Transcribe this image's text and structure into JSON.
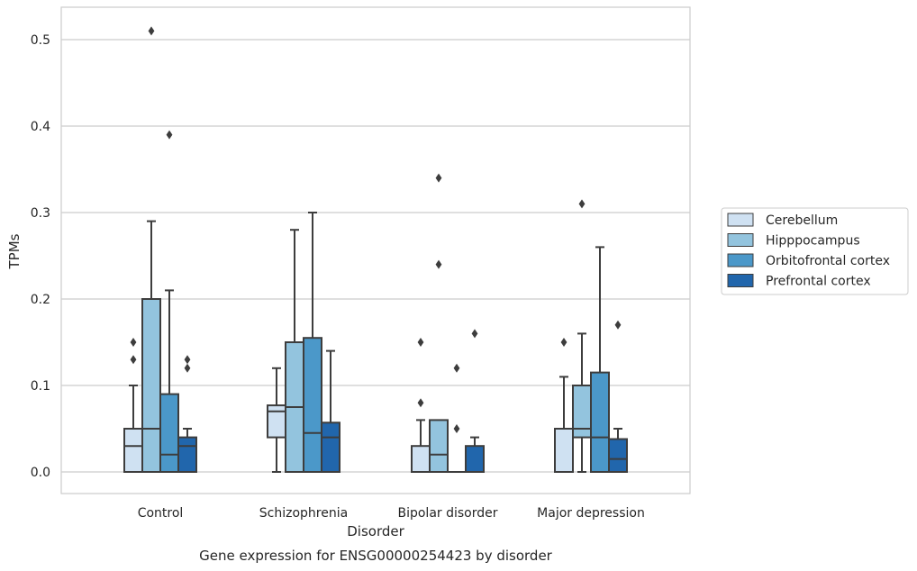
{
  "chart_data": {
    "type": "box",
    "xlabel": "Disorder",
    "ylabel": "TPMs",
    "caption": "Gene expression for ENSG00000254423 by disorder",
    "ylim": [
      -0.025,
      0.536
    ],
    "yticks": [
      0.0,
      0.1,
      0.2,
      0.3,
      0.4,
      0.5
    ],
    "ytick_labels": [
      "0.0",
      "0.1",
      "0.2",
      "0.3",
      "0.4",
      "0.5"
    ],
    "grid": "horizontal",
    "legend_position": "right",
    "categories": [
      "Control",
      "Schizophrenia",
      "Bipolar disorder",
      "Major depression"
    ],
    "series": [
      {
        "name": "Cerebellum",
        "color": "#cfe1f2",
        "boxes": [
          {
            "min": 0.0,
            "q1": 0.0,
            "median": 0.03,
            "q3": 0.05,
            "max": 0.1,
            "outliers": [
              0.13,
              0.15
            ]
          },
          {
            "min": 0.0,
            "q1": 0.04,
            "median": 0.07,
            "q3": 0.077,
            "max": 0.12,
            "outliers": []
          },
          {
            "min": 0.0,
            "q1": 0.0,
            "median": 0.0,
            "q3": 0.03,
            "max": 0.06,
            "outliers": [
              0.08,
              0.15
            ]
          },
          {
            "min": 0.0,
            "q1": 0.0,
            "median": 0.0,
            "q3": 0.05,
            "max": 0.11,
            "outliers": [
              0.15
            ]
          }
        ]
      },
      {
        "name": "Hipppocampus",
        "color": "#93c4de",
        "boxes": [
          {
            "min": 0.0,
            "q1": 0.0,
            "median": 0.05,
            "q3": 0.2,
            "max": 0.29,
            "outliers": [
              0.51
            ]
          },
          {
            "min": 0.0,
            "q1": 0.0,
            "median": 0.075,
            "q3": 0.15,
            "max": 0.28,
            "outliers": []
          },
          {
            "min": 0.0,
            "q1": 0.0,
            "median": 0.02,
            "q3": 0.06,
            "max": 0.06,
            "outliers": [
              0.24,
              0.34
            ]
          },
          {
            "min": 0.0,
            "q1": 0.04,
            "median": 0.05,
            "q3": 0.1,
            "max": 0.16,
            "outliers": [
              0.31
            ]
          }
        ]
      },
      {
        "name": "Orbitofrontal cortex",
        "color": "#4b98c9",
        "boxes": [
          {
            "min": 0.0,
            "q1": 0.0,
            "median": 0.02,
            "q3": 0.09,
            "max": 0.21,
            "outliers": [
              0.39
            ]
          },
          {
            "min": 0.0,
            "q1": 0.0,
            "median": 0.045,
            "q3": 0.155,
            "max": 0.3,
            "outliers": []
          },
          {
            "min": 0.0,
            "q1": 0.0,
            "median": 0.0,
            "q3": 0.0,
            "max": 0.0,
            "outliers": [
              0.05,
              0.12
            ]
          },
          {
            "min": 0.0,
            "q1": 0.0,
            "median": 0.04,
            "q3": 0.115,
            "max": 0.26,
            "outliers": []
          }
        ]
      },
      {
        "name": "Prefrontal cortex",
        "color": "#2166ac",
        "boxes": [
          {
            "min": 0.0,
            "q1": 0.0,
            "median": 0.03,
            "q3": 0.04,
            "max": 0.05,
            "outliers": [
              0.12,
              0.13
            ]
          },
          {
            "min": 0.0,
            "q1": 0.0,
            "median": 0.04,
            "q3": 0.057,
            "max": 0.14,
            "outliers": []
          },
          {
            "min": 0.0,
            "q1": 0.0,
            "median": 0.0,
            "q3": 0.03,
            "max": 0.04,
            "outliers": [
              0.16
            ]
          },
          {
            "min": 0.0,
            "q1": 0.0,
            "median": 0.015,
            "q3": 0.038,
            "max": 0.05,
            "outliers": [
              0.17
            ]
          }
        ]
      }
    ]
  }
}
